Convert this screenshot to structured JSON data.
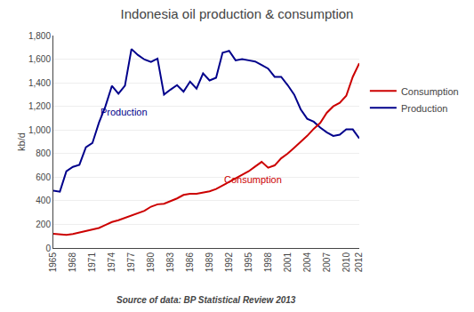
{
  "chart_data": {
    "type": "line",
    "title": "Indonesia oil production & consumption",
    "ylabel": "kb/d",
    "source": "Source of data: BP Statistical Review 2013",
    "x": [
      1965,
      1966,
      1967,
      1968,
      1969,
      1970,
      1971,
      1972,
      1973,
      1974,
      1975,
      1976,
      1977,
      1978,
      1979,
      1980,
      1981,
      1982,
      1983,
      1984,
      1985,
      1986,
      1987,
      1988,
      1989,
      1990,
      1991,
      1992,
      1993,
      1994,
      1995,
      1996,
      1997,
      1998,
      1999,
      2000,
      2001,
      2002,
      2003,
      2004,
      2005,
      2006,
      2007,
      2008,
      2009,
      2010,
      2011,
      2012
    ],
    "series": [
      {
        "name": "Production",
        "color": "#00008B",
        "values": [
          486,
          477,
          650,
          687,
          705,
          854,
          889,
          1061,
          1200,
          1374,
          1307,
          1375,
          1686,
          1635,
          1597,
          1577,
          1605,
          1300,
          1342,
          1380,
          1325,
          1410,
          1350,
          1480,
          1420,
          1442,
          1655,
          1670,
          1590,
          1600,
          1590,
          1580,
          1550,
          1520,
          1450,
          1450,
          1380,
          1300,
          1175,
          1095,
          1070,
          1020,
          980,
          950,
          960,
          1005,
          1005,
          928
        ]
      },
      {
        "name": "Consumption",
        "color": "#CC0000",
        "values": [
          120,
          115,
          112,
          118,
          130,
          143,
          155,
          170,
          195,
          220,
          235,
          255,
          270,
          290,
          315,
          350,
          370,
          375,
          395,
          420,
          450,
          460,
          460,
          470,
          480,
          500,
          530,
          560,
          590,
          620,
          650,
          690,
          730,
          680,
          700,
          760,
          800,
          850,
          900,
          950,
          1010,
          1060,
          1145,
          1200,
          1230,
          1290,
          1450,
          1565
        ]
      }
    ],
    "xlim": [
      1965,
      2012
    ],
    "xticks": [
      1965,
      1968,
      1971,
      1974,
      1977,
      1980,
      1983,
      1986,
      1989,
      1992,
      1995,
      1998,
      2001,
      2004,
      2007,
      2010,
      2012
    ],
    "ylim": [
      0,
      1800
    ],
    "yticks": [
      0,
      200,
      400,
      600,
      800,
      {
        "value": 1000,
        "label": "1,000"
      },
      {
        "value": 1200,
        "label": "1,200"
      },
      {
        "value": 1400,
        "label": "1,400"
      },
      {
        "value": 1600,
        "label": "1,600"
      },
      {
        "value": 1800,
        "label": "1,800"
      }
    ],
    "grid": "y",
    "legend": "right",
    "annotations": [
      {
        "text": "Production",
        "x": 1972,
        "y": 1090,
        "color": "#00008B"
      },
      {
        "text": "Consumption",
        "x": 1991,
        "y": 520,
        "color": "#CC0000"
      }
    ]
  }
}
